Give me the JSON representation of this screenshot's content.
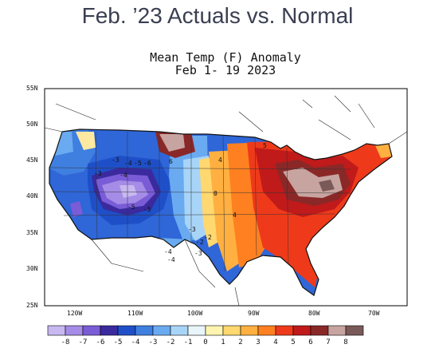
{
  "slide_title": "Feb. ’23 Actuals vs. Normal",
  "map_title_line1": "Mean Temp (F) Anomaly",
  "map_title_line2": "Feb 1- 19 2023",
  "lat_labels": [
    "55N",
    "50N",
    "45N",
    "40N",
    "35N",
    "30N",
    "25N"
  ],
  "lon_labels": [
    "120W",
    "110W",
    "100W",
    "90W",
    "80W",
    "70W"
  ],
  "legend": {
    "tick_labels": [
      "-8",
      "-7",
      "-6",
      "-5",
      "-4",
      "-3",
      "-2",
      "-1",
      "0",
      "1",
      "2",
      "3",
      "4",
      "5",
      "6",
      "7",
      "8"
    ],
    "colors": [
      "#c8b8f0",
      "#a58ce6",
      "#7a5cd6",
      "#3a2a9e",
      "#1f4fc8",
      "#3f7fe0",
      "#6aaaf0",
      "#a8d4f8",
      "#e8f6fc",
      "#fff5b0",
      "#ffd870",
      "#ffb040",
      "#ff8020",
      "#ee3a1a",
      "#c01a1a",
      "#8a2828",
      "#c8a4a0",
      "#7a5a58"
    ]
  },
  "contour_labels": [
    "-3",
    "-4",
    "-5",
    "-6",
    "-3",
    "-4",
    "-5",
    "-5",
    "-3",
    "-2",
    "-4",
    "-3",
    "-2",
    "0",
    "4",
    "5",
    "6",
    "4",
    "-4"
  ]
}
